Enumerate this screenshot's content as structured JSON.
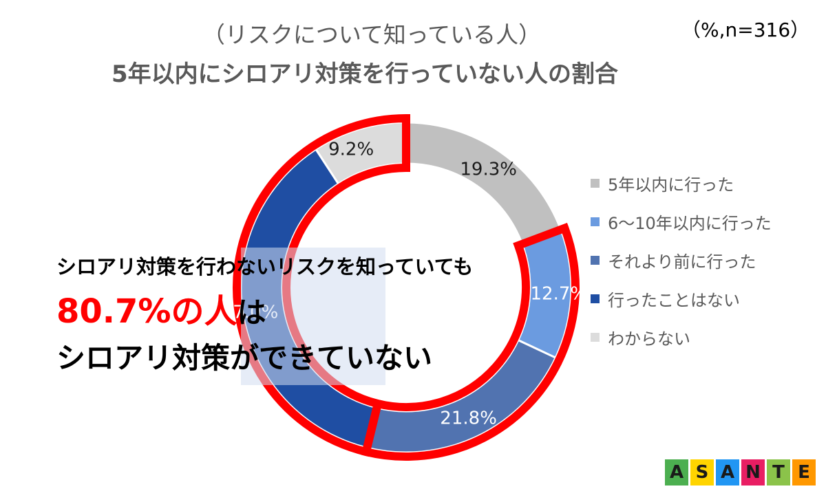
{
  "header": {
    "subtitle": "（リスクについて知っている人）",
    "title": "5年以内にシロアリ対策を行っていない人の割合",
    "unit_note": "（%,n=316）"
  },
  "chart_data": {
    "type": "pie",
    "variant": "donut",
    "series": [
      {
        "name": "5年以内に行った",
        "value": 19.3,
        "label": "19.3%",
        "color": "#c0c0c0"
      },
      {
        "name": "6～10年以内に行った",
        "value": 12.7,
        "label": "12.7%",
        "color": "#6b9be0"
      },
      {
        "name": "それより前に行った",
        "value": 21.8,
        "label": "21.8%",
        "color": "#5173b0"
      },
      {
        "name": "行ったことはない",
        "value": 37.0,
        "label": "37.0%",
        "color": "#1f4ea3"
      },
      {
        "name": "わからない",
        "value": 9.2,
        "label": "9.2%",
        "color": "#dcdcdc"
      }
    ],
    "highlight_color": "#ff0000",
    "legend_position": "right"
  },
  "callout": {
    "line1": "シロアリ対策を行わないリスクを知っていても",
    "line2_highlight": "80.7%の人",
    "line2_rest": "は",
    "line3": "シロアリ対策ができていない"
  },
  "logo": {
    "letters": [
      "A",
      "S",
      "A",
      "N",
      "T",
      "E"
    ],
    "colors": [
      "#4caf50",
      "#ffd400",
      "#2196f3",
      "#e91e63",
      "#8bc34a",
      "#ff9800"
    ]
  }
}
